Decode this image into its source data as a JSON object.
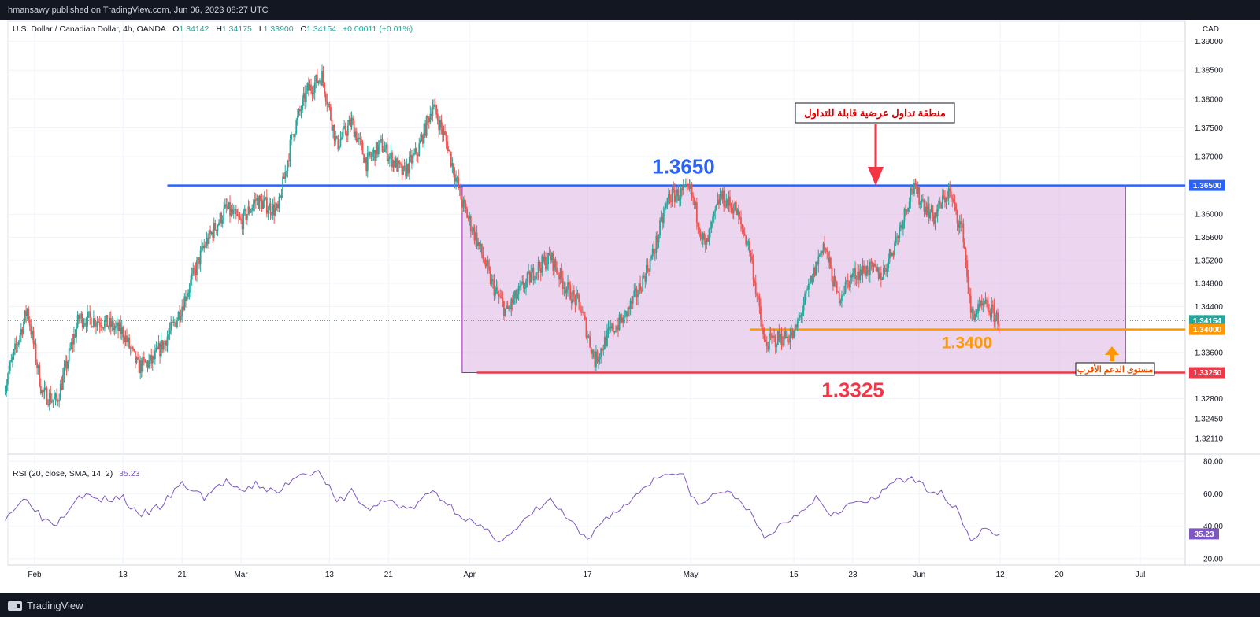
{
  "header": {
    "publisher": "hmansawy published on TradingView.com, Jun 06, 2023 08:27 UTC"
  },
  "legend": {
    "symbol": "U.S. Dollar / Canadian Dollar, 4h, OANDA",
    "open_label": "O",
    "open": "1.34142",
    "high_label": "H",
    "high": "1.34175",
    "low_label": "L",
    "low": "1.33900",
    "close_label": "C",
    "close": "1.34154",
    "change": "+0.00011 (+0.01%)"
  },
  "footer": {
    "brand": "TradingView"
  },
  "colors": {
    "up": "#26a69a",
    "down": "#ef5350",
    "resistance": "#2962ff",
    "support": "#f23645",
    "near_support": "#ff9800",
    "range_fill": "#e1bee7",
    "range_border": "#9c27b0",
    "rsi": "#7e57c2"
  },
  "chart_data": {
    "type": "candlestick",
    "price_axis": {
      "currency": "CAD",
      "range": [
        1.3185,
        1.3935
      ],
      "ticks": [
        "1.39000",
        "1.38500",
        "1.38000",
        "1.37500",
        "1.37000",
        "1.36000",
        "1.35600",
        "1.35200",
        "1.34800",
        "1.34400",
        "1.33600",
        "1.32800",
        "1.32450",
        "1.32110"
      ]
    },
    "x_axis": {
      "ticks": [
        {
          "label": "Feb",
          "date": "2023-02-01"
        },
        {
          "label": "13",
          "date": "2023-02-13"
        },
        {
          "label": "21",
          "date": "2023-02-21"
        },
        {
          "label": "Mar",
          "date": "2023-03-01"
        },
        {
          "label": "13",
          "date": "2023-03-13"
        },
        {
          "label": "21",
          "date": "2023-03-21"
        },
        {
          "label": "Apr",
          "date": "2023-04-01"
        },
        {
          "label": "17",
          "date": "2023-04-17"
        },
        {
          "label": "May",
          "date": "2023-05-01"
        },
        {
          "label": "15",
          "date": "2023-05-15"
        },
        {
          "label": "23",
          "date": "2023-05-23"
        },
        {
          "label": "Jun",
          "date": "2023-06-01"
        },
        {
          "label": "12",
          "date": "2023-06-12"
        },
        {
          "label": "20",
          "date": "2023-06-20"
        },
        {
          "label": "Jul",
          "date": "2023-07-01"
        }
      ]
    },
    "path_points": [
      [
        "2023-01-28",
        1.3305
      ],
      [
        "2023-01-31",
        1.3435
      ],
      [
        "2023-02-02",
        1.329
      ],
      [
        "2023-02-04",
        1.3275
      ],
      [
        "2023-02-07",
        1.342
      ],
      [
        "2023-02-10",
        1.3415
      ],
      [
        "2023-02-13",
        1.3395
      ],
      [
        "2023-02-15",
        1.3335
      ],
      [
        "2023-02-17",
        1.3345
      ],
      [
        "2023-02-20",
        1.341
      ],
      [
        "2023-02-22",
        1.3475
      ],
      [
        "2023-02-24",
        1.3545
      ],
      [
        "2023-02-27",
        1.361
      ],
      [
        "2023-03-01",
        1.3585
      ],
      [
        "2023-03-03",
        1.3625
      ],
      [
        "2023-03-06",
        1.3605
      ],
      [
        "2023-03-08",
        1.374
      ],
      [
        "2023-03-10",
        1.3815
      ],
      [
        "2023-03-12",
        1.384
      ],
      [
        "2023-03-14",
        1.372
      ],
      [
        "2023-03-16",
        1.376
      ],
      [
        "2023-03-18",
        1.369
      ],
      [
        "2023-03-20",
        1.372
      ],
      [
        "2023-03-23",
        1.367
      ],
      [
        "2023-03-25",
        1.371
      ],
      [
        "2023-03-27",
        1.379
      ],
      [
        "2023-03-29",
        1.372
      ],
      [
        "2023-03-31",
        1.362
      ],
      [
        "2023-04-02",
        1.3555
      ],
      [
        "2023-04-04",
        1.348
      ],
      [
        "2023-04-06",
        1.343
      ],
      [
        "2023-04-08",
        1.347
      ],
      [
        "2023-04-10",
        1.3505
      ],
      [
        "2023-04-12",
        1.3525
      ],
      [
        "2023-04-14",
        1.3475
      ],
      [
        "2023-04-16",
        1.344
      ],
      [
        "2023-04-18",
        1.3345
      ],
      [
        "2023-04-20",
        1.3395
      ],
      [
        "2023-04-22",
        1.342
      ],
      [
        "2023-04-24",
        1.347
      ],
      [
        "2023-04-26",
        1.3535
      ],
      [
        "2023-04-28",
        1.363
      ],
      [
        "2023-05-01",
        1.364
      ],
      [
        "2023-05-03",
        1.354
      ],
      [
        "2023-05-05",
        1.363
      ],
      [
        "2023-05-07",
        1.361
      ],
      [
        "2023-05-09",
        1.354
      ],
      [
        "2023-05-11",
        1.3375
      ],
      [
        "2023-05-13",
        1.3385
      ],
      [
        "2023-05-15",
        1.339
      ],
      [
        "2023-05-17",
        1.347
      ],
      [
        "2023-05-19",
        1.355
      ],
      [
        "2023-05-21",
        1.3455
      ],
      [
        "2023-05-23",
        1.3495
      ],
      [
        "2023-05-25",
        1.3505
      ],
      [
        "2023-05-27",
        1.3495
      ],
      [
        "2023-05-29",
        1.356
      ],
      [
        "2023-05-31",
        1.3645
      ],
      [
        "2023-06-01",
        1.363
      ],
      [
        "2023-06-03",
        1.3595
      ],
      [
        "2023-06-05",
        1.364
      ],
      [
        "2023-06-07",
        1.3565
      ],
      [
        "2023-06-08",
        1.3425
      ],
      [
        "2023-06-10",
        1.344
      ],
      [
        "2023-06-12",
        1.3415
      ]
    ],
    "levels": [
      {
        "name": "resistance",
        "value": 1.365,
        "axis_label": "1.36500",
        "annotation": "1.3650"
      },
      {
        "name": "current",
        "value": 1.34154,
        "axis_label": "1.34154"
      },
      {
        "name": "near-support",
        "value": 1.34,
        "axis_label": "1.34000",
        "annotation": "1.3400"
      },
      {
        "name": "support",
        "value": 1.3325,
        "axis_label": "1.33250",
        "annotation": "1.3325"
      }
    ],
    "range_box": {
      "from": "2023-03-31",
      "to": "2023-06-29",
      "high": 1.365,
      "low": 1.3325
    },
    "annotations": {
      "range_text": "منطقة تداول عرضية قابلة للتداول",
      "support_text": "مستوى الدعم الأقرب"
    },
    "rsi": {
      "label": "RSI (20, close, SMA, 14, 2)",
      "value": "35.23",
      "range": [
        16,
        84
      ],
      "ticks": [
        "80.00",
        "60.00",
        "40.00",
        "20.00"
      ],
      "points": [
        [
          "2023-01-28",
          46
        ],
        [
          "2023-01-31",
          58
        ],
        [
          "2023-02-02",
          45
        ],
        [
          "2023-02-04",
          42
        ],
        [
          "2023-02-07",
          60
        ],
        [
          "2023-02-10",
          56
        ],
        [
          "2023-02-13",
          58
        ],
        [
          "2023-02-15",
          46
        ],
        [
          "2023-02-18",
          52
        ],
        [
          "2023-02-21",
          66
        ],
        [
          "2023-02-24",
          58
        ],
        [
          "2023-02-27",
          68
        ],
        [
          "2023-03-01",
          60
        ],
        [
          "2023-03-03",
          66
        ],
        [
          "2023-03-06",
          60
        ],
        [
          "2023-03-08",
          70
        ],
        [
          "2023-03-10",
          74
        ],
        [
          "2023-03-12",
          72
        ],
        [
          "2023-03-14",
          54
        ],
        [
          "2023-03-16",
          62
        ],
        [
          "2023-03-18",
          50
        ],
        [
          "2023-03-21",
          56
        ],
        [
          "2023-03-24",
          50
        ],
        [
          "2023-03-27",
          62
        ],
        [
          "2023-03-30",
          50
        ],
        [
          "2023-04-02",
          40
        ],
        [
          "2023-04-05",
          32
        ],
        [
          "2023-04-07",
          36
        ],
        [
          "2023-04-10",
          50
        ],
        [
          "2023-04-12",
          56
        ],
        [
          "2023-04-14",
          46
        ],
        [
          "2023-04-17",
          30
        ],
        [
          "2023-04-19",
          44
        ],
        [
          "2023-04-22",
          52
        ],
        [
          "2023-04-25",
          66
        ],
        [
          "2023-04-28",
          74
        ],
        [
          "2023-04-30",
          70
        ],
        [
          "2023-05-02",
          52
        ],
        [
          "2023-05-05",
          62
        ],
        [
          "2023-05-08",
          56
        ],
        [
          "2023-05-11",
          32
        ],
        [
          "2023-05-13",
          40
        ],
        [
          "2023-05-15",
          46
        ],
        [
          "2023-05-18",
          58
        ],
        [
          "2023-05-20",
          48
        ],
        [
          "2023-05-23",
          54
        ],
        [
          "2023-05-26",
          56
        ],
        [
          "2023-05-29",
          70
        ],
        [
          "2023-05-31",
          68
        ],
        [
          "2023-06-02",
          64
        ],
        [
          "2023-06-04",
          60
        ],
        [
          "2023-06-06",
          52
        ],
        [
          "2023-06-08",
          32
        ],
        [
          "2023-06-10",
          38
        ],
        [
          "2023-06-12",
          35.23
        ]
      ]
    }
  }
}
